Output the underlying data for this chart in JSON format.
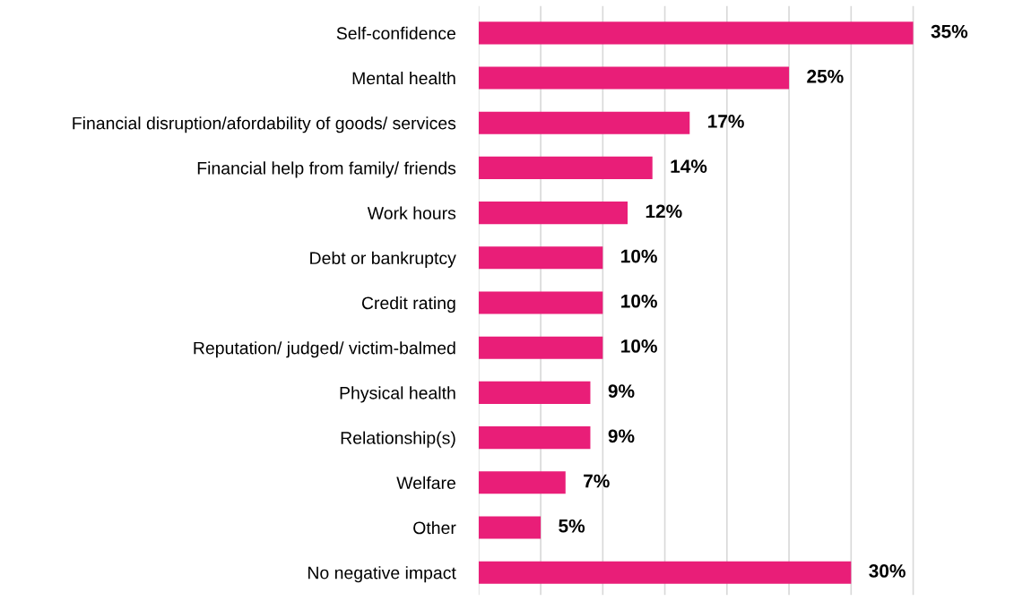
{
  "chart_data": {
    "type": "bar",
    "orientation": "horizontal",
    "categories": [
      "Self-confidence",
      "Mental health",
      "Financial disruption/afordability of goods/ services",
      "Financial help from family/ friends",
      "Work hours",
      "Debt or bankruptcy",
      "Credit rating",
      "Reputation/ judged/ victim-balmed",
      "Physical health",
      "Relationship(s)",
      "Welfare",
      "Other",
      "No negative impact"
    ],
    "values": [
      35,
      25,
      17,
      14,
      12,
      10,
      10,
      10,
      9,
      9,
      7,
      5,
      30
    ],
    "value_labels": [
      "35%",
      "25%",
      "17%",
      "14%",
      "12%",
      "10%",
      "10%",
      "10%",
      "9%",
      "9%",
      "7%",
      "5%",
      "30%"
    ],
    "color": "#e91e78",
    "xticks": [
      {
        "value": 0,
        "label": null
      },
      {
        "value": 5,
        "label": null
      },
      {
        "value": 10,
        "label": null
      },
      {
        "value": 15,
        "label": null
      },
      {
        "value": 20,
        "label": null
      },
      {
        "value": 25,
        "label": null
      },
      {
        "value": 30,
        "label": null
      },
      {
        "value": 35,
        "label": null
      }
    ],
    "grid": "x",
    "tick_labels": "y",
    "legend": false
  }
}
